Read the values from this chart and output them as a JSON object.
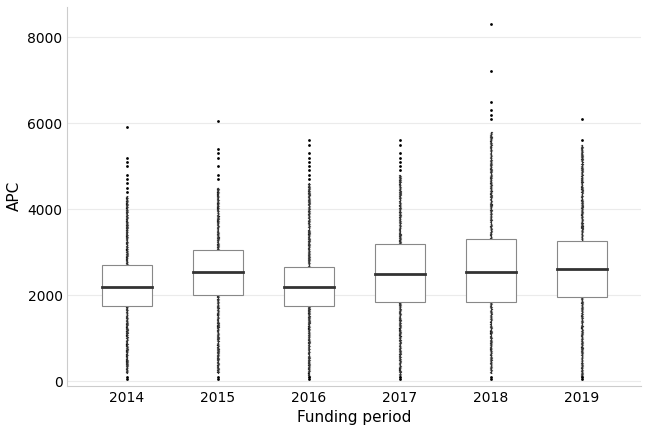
{
  "years": [
    "2014",
    "2015",
    "2016",
    "2017",
    "2018",
    "2019"
  ],
  "stats": [
    {
      "q1": 1750,
      "median": 2200,
      "q3": 2700,
      "whisker_low": 200,
      "whisker_high": 4300,
      "outliers": [
        5900,
        5200,
        5100,
        5000,
        4800,
        4700,
        4600,
        4500,
        4400,
        100,
        50
      ]
    },
    {
      "q1": 2000,
      "median": 2550,
      "q3": 3050,
      "whisker_low": 200,
      "whisker_high": 4500,
      "outliers": [
        6050,
        5400,
        5300,
        5200,
        5000,
        4800,
        4700,
        100,
        50
      ]
    },
    {
      "q1": 1750,
      "median": 2200,
      "q3": 2650,
      "whisker_low": 100,
      "whisker_high": 4600,
      "outliers": [
        5600,
        5500,
        5300,
        5200,
        5100,
        5000,
        4900,
        4800,
        4700,
        100,
        50
      ]
    },
    {
      "q1": 1850,
      "median": 2500,
      "q3": 3200,
      "whisker_low": 100,
      "whisker_high": 4800,
      "outliers": [
        5600,
        5500,
        5300,
        5200,
        5100,
        5000,
        4900,
        100,
        50
      ]
    },
    {
      "q1": 1850,
      "median": 2550,
      "q3": 3300,
      "whisker_low": 200,
      "whisker_high": 5800,
      "outliers": [
        8300,
        7200,
        6500,
        6300,
        6200,
        6100,
        100,
        50
      ]
    },
    {
      "q1": 1950,
      "median": 2600,
      "q3": 3250,
      "whisker_low": 100,
      "whisker_high": 5500,
      "outliers": [
        6100,
        5600,
        100,
        50
      ]
    }
  ],
  "xlabel": "Funding period",
  "ylabel": "APC",
  "ylim": [
    -100,
    8700
  ],
  "yticks": [
    0,
    2000,
    4000,
    6000,
    8000
  ],
  "bg_color": "#ffffff",
  "grid_color": "#ebebeb",
  "box_edge_color": "#888888",
  "box_fill_color": "#ffffff",
  "median_color": "#333333",
  "scatter_color": "#000000",
  "outlier_color": "#000000",
  "box_width": 0.55,
  "n_scatter": 1200,
  "scatter_jitter": 0.012,
  "scatter_alpha": 0.25,
  "scatter_size": 0.8
}
